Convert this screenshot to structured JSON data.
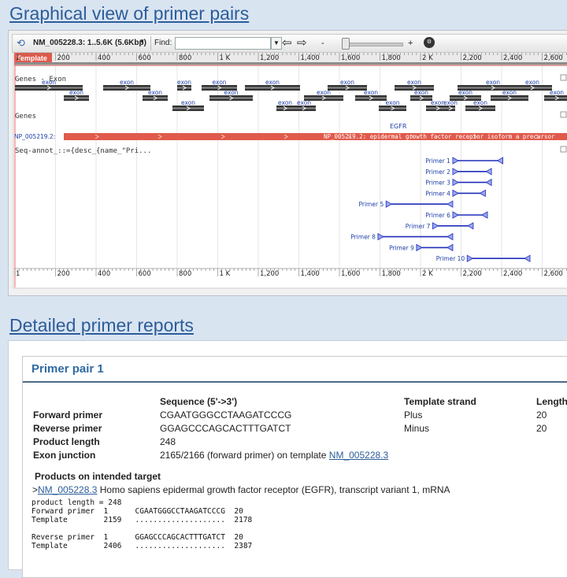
{
  "headings": {
    "graphical": "Graphical view of primer pairs",
    "detailed": "Detailed primer reports"
  },
  "toolbar": {
    "sequence_label": "NM_005228.3: 1..5.6K (5.6Kbp)",
    "find_label": "Find:",
    "find_value": "",
    "zoom_minus": "-",
    "zoom_plus": "+"
  },
  "graphic": {
    "template_label": "Template",
    "ruler_ticks": [
      "200",
      "400",
      "600",
      "800",
      "1 K",
      "1,200",
      "1,400",
      "1,600",
      "1,800",
      "2 K",
      "2,200",
      "2,400",
      "2,600"
    ],
    "genes_exon_track": "Genes - Exon",
    "exon_label": "exon",
    "genes_track": "Genes",
    "gene_name": "EGFR",
    "protein_short": "NP_005219.2:",
    "protein_label": "NP_005219.2: epidermal growth factor receptor isoform a precursor",
    "seq_annot_track": "Seq-annot_::={desc_{name_\"Pri...",
    "primers": [
      {
        "name": "Primer 1",
        "start": 2159,
        "end": 2406
      },
      {
        "name": "Primer 2",
        "start": 2159,
        "end": 2350
      },
      {
        "name": "Primer 3",
        "start": 2159,
        "end": 2350
      },
      {
        "name": "Primer 4",
        "start": 2159,
        "end": 2320
      },
      {
        "name": "Primer 5",
        "start": 1830,
        "end": 2159
      },
      {
        "name": "Primer 6",
        "start": 2159,
        "end": 2330
      },
      {
        "name": "Primer 7",
        "start": 2060,
        "end": 2260
      },
      {
        "name": "Primer 8",
        "start": 1790,
        "end": 2159
      },
      {
        "name": "Primer 9",
        "start": 1980,
        "end": 2159
      },
      {
        "name": "Primer 10",
        "start": 2230,
        "end": 2540
      }
    ]
  },
  "report": {
    "pair_title": "Primer pair 1",
    "columns": {
      "sequence": "Sequence (5'->3')",
      "strand": "Template strand",
      "length": "Length"
    },
    "rows": [
      {
        "label": "Forward primer",
        "sequence": "CGAATGGGCCTAAGATCCCG",
        "strand": "Plus",
        "length": "20"
      },
      {
        "label": "Reverse primer",
        "sequence": "GGAGCCCAGCACTTTGATCT",
        "strand": "Minus",
        "length": "20"
      }
    ],
    "product_length_label": "Product length",
    "product_length": "248",
    "exon_junction_label": "Exon junction",
    "exon_junction_text": "2165/2166 (forward primer) on template",
    "exon_junction_link": "NM_005228.3",
    "products_heading": "Products on intended target",
    "target_prefix": ">",
    "target_link": "NM_005228.3",
    "target_desc": " Homo sapiens epidermal growth factor receptor (EGFR), transcript variant 1, mRNA",
    "alignment": "product length = 248\nForward primer  1      CGAATGGGCCTAAGATCCCG  20\nTemplate        2159   ....................  2178\n\nReverse primer  1      GGAGCCCAGCACTTTGATCT  20\nTemplate        2406   ....................  2387"
  },
  "colors": {
    "heading": "#2b5d9a",
    "template_red": "#e05a4b",
    "exon_dark": "#333333",
    "primer_blue": "#1f2fb8",
    "label_blue": "#1f3fa8"
  }
}
